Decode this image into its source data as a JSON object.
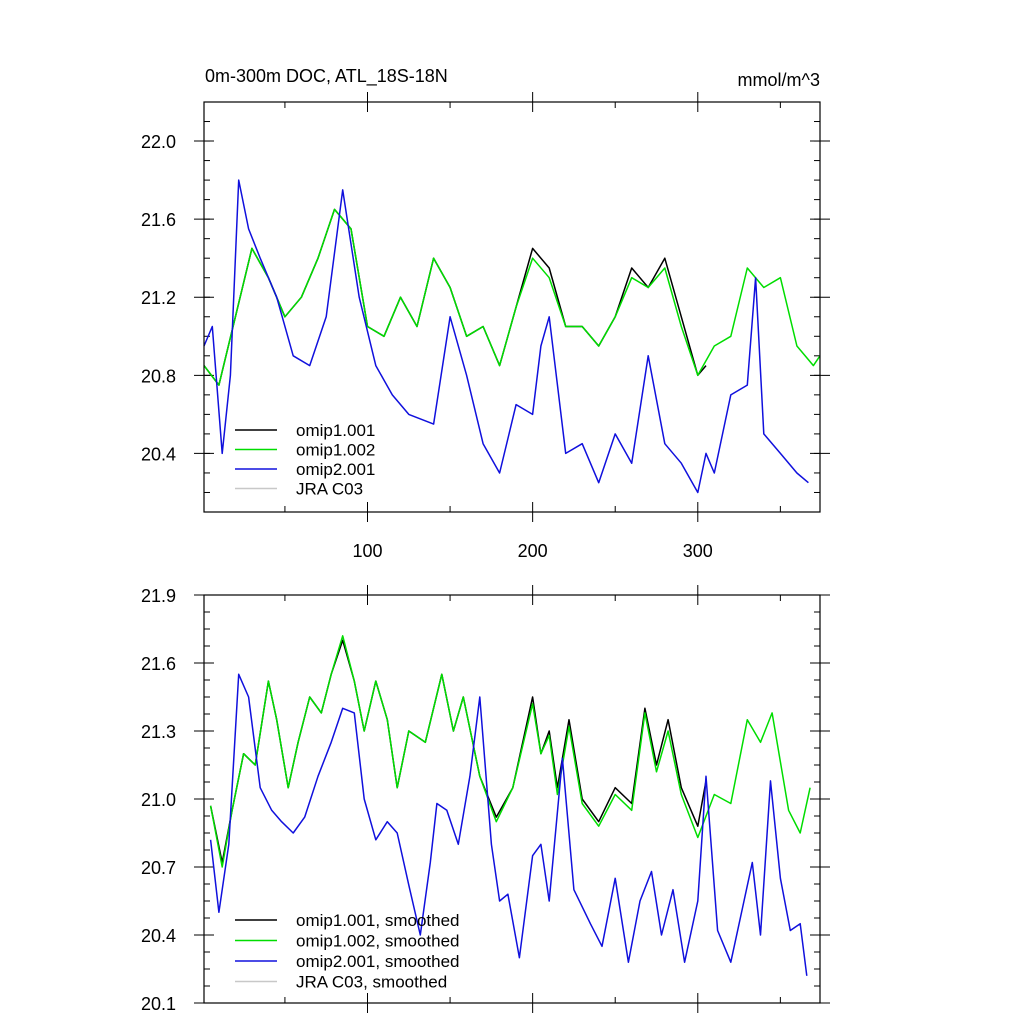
{
  "chart_data": [
    {
      "type": "line",
      "title": "0m-300m DOC, ATL_18S-18N",
      "units": "mmol/m^3",
      "xlabel": "",
      "ylabel": "",
      "xlim": [
        1,
        374
      ],
      "ylim": [
        20.1,
        22.2
      ],
      "xticks": [
        100,
        200,
        300
      ],
      "xtick_labels": [
        "100",
        "200",
        "300"
      ],
      "yticks": [
        20.4,
        20.8,
        21.2,
        21.6,
        22.0
      ],
      "ytick_labels": [
        "20.4",
        "20.8",
        "21.2",
        "21.6",
        "22.0"
      ],
      "legend_position": "bottom-left",
      "series": [
        {
          "name": "omip1.001",
          "color": "#000000",
          "x": [
            1,
            10,
            20,
            30,
            40,
            50,
            60,
            70,
            80,
            90,
            100,
            110,
            120,
            130,
            140,
            150,
            160,
            170,
            180,
            190,
            200,
            210,
            220,
            230,
            240,
            250,
            260,
            270,
            280,
            290,
            300,
            305
          ],
          "values": [
            20.85,
            20.75,
            21.1,
            21.45,
            21.3,
            21.1,
            21.2,
            21.4,
            21.65,
            21.55,
            21.05,
            21.0,
            21.2,
            21.05,
            21.4,
            21.25,
            21.0,
            21.05,
            20.85,
            21.15,
            21.45,
            21.35,
            21.05,
            21.05,
            20.95,
            21.1,
            21.35,
            21.25,
            21.4,
            21.1,
            20.8,
            20.85
          ]
        },
        {
          "name": "omip1.002",
          "color": "#00dd00",
          "x": [
            1,
            10,
            20,
            30,
            40,
            50,
            60,
            70,
            80,
            90,
            100,
            110,
            120,
            130,
            140,
            150,
            160,
            170,
            180,
            190,
            200,
            210,
            220,
            230,
            240,
            250,
            260,
            270,
            280,
            290,
            300,
            310,
            320,
            330,
            340,
            350,
            360,
            370,
            374
          ],
          "values": [
            20.85,
            20.75,
            21.1,
            21.45,
            21.3,
            21.1,
            21.2,
            21.4,
            21.65,
            21.55,
            21.05,
            21.0,
            21.2,
            21.05,
            21.4,
            21.25,
            21.0,
            21.05,
            20.85,
            21.15,
            21.4,
            21.3,
            21.05,
            21.05,
            20.95,
            21.1,
            21.3,
            21.25,
            21.35,
            21.05,
            20.8,
            20.95,
            21.0,
            21.35,
            21.25,
            21.3,
            20.95,
            20.85,
            20.9
          ]
        },
        {
          "name": "omip2.001",
          "color": "#1010dd",
          "x": [
            1,
            6,
            12,
            17,
            22,
            28,
            35,
            45,
            55,
            65,
            75,
            85,
            95,
            105,
            115,
            125,
            140,
            150,
            160,
            170,
            180,
            190,
            200,
            205,
            210,
            220,
            230,
            240,
            250,
            260,
            270,
            280,
            290,
            300,
            305,
            310,
            320,
            330,
            335,
            340,
            350,
            360,
            367
          ],
          "values": [
            20.95,
            21.05,
            20.4,
            20.8,
            21.8,
            21.55,
            21.4,
            21.2,
            20.9,
            20.85,
            21.1,
            21.75,
            21.2,
            20.85,
            20.7,
            20.6,
            20.55,
            21.1,
            20.8,
            20.45,
            20.3,
            20.65,
            20.6,
            20.95,
            21.1,
            20.4,
            20.45,
            20.25,
            20.5,
            20.35,
            20.9,
            20.45,
            20.35,
            20.2,
            20.4,
            20.3,
            20.7,
            20.75,
            21.3,
            20.5,
            20.4,
            20.3,
            20.25
          ]
        },
        {
          "name": "JRA C03",
          "color": "#c8c8c8",
          "x": [],
          "values": []
        }
      ]
    },
    {
      "type": "line",
      "title": "",
      "xlabel": "",
      "ylabel": "",
      "xlim": [
        1,
        374
      ],
      "ylim": [
        20.1,
        21.9
      ],
      "xticks": [
        100,
        200,
        300
      ],
      "yticks": [
        20.1,
        20.4,
        20.7,
        21.0,
        21.3,
        21.6,
        21.9
      ],
      "ytick_labels": [
        "20.1",
        "20.4",
        "20.7",
        "21.0",
        "21.3",
        "21.6",
        "21.9"
      ],
      "legend_position": "bottom-left",
      "series": [
        {
          "name": "omip1.001, smoothed",
          "color": "#000000",
          "x": [
            5,
            12,
            18,
            25,
            32,
            40,
            45,
            52,
            58,
            65,
            72,
            78,
            85,
            92,
            98,
            105,
            112,
            118,
            125,
            135,
            145,
            152,
            158,
            168,
            178,
            188,
            200,
            205,
            210,
            215,
            222,
            230,
            240,
            250,
            260,
            268,
            275,
            282,
            290,
            300,
            305
          ],
          "values": [
            20.97,
            20.72,
            20.95,
            21.2,
            21.15,
            21.52,
            21.35,
            21.05,
            21.25,
            21.45,
            21.38,
            21.55,
            21.7,
            21.52,
            21.3,
            21.52,
            21.35,
            21.05,
            21.3,
            21.25,
            21.55,
            21.3,
            21.45,
            21.1,
            20.92,
            21.05,
            21.45,
            21.2,
            21.3,
            21.05,
            21.35,
            21.0,
            20.9,
            21.05,
            20.98,
            21.4,
            21.15,
            21.35,
            21.05,
            20.88,
            21.08
          ]
        },
        {
          "name": "omip1.002, smoothed",
          "color": "#00dd00",
          "x": [
            5,
            12,
            18,
            25,
            32,
            40,
            45,
            52,
            58,
            65,
            72,
            78,
            85,
            92,
            98,
            105,
            112,
            118,
            125,
            135,
            145,
            152,
            158,
            168,
            178,
            188,
            200,
            205,
            210,
            215,
            222,
            230,
            240,
            250,
            260,
            268,
            275,
            282,
            290,
            300,
            310,
            320,
            330,
            338,
            345,
            355,
            362,
            368
          ],
          "values": [
            20.97,
            20.7,
            20.95,
            21.2,
            21.15,
            21.52,
            21.35,
            21.05,
            21.25,
            21.45,
            21.38,
            21.55,
            21.72,
            21.52,
            21.3,
            21.52,
            21.35,
            21.05,
            21.3,
            21.25,
            21.55,
            21.3,
            21.45,
            21.1,
            20.9,
            21.05,
            21.42,
            21.2,
            21.28,
            21.02,
            21.32,
            20.98,
            20.88,
            21.02,
            20.95,
            21.38,
            21.12,
            21.3,
            21.02,
            20.83,
            21.02,
            20.98,
            21.35,
            21.25,
            21.38,
            20.95,
            20.85,
            21.05
          ]
        },
        {
          "name": "omip2.001, smoothed",
          "color": "#1010dd",
          "x": [
            5,
            10,
            16,
            22,
            28,
            35,
            42,
            48,
            55,
            62,
            70,
            78,
            85,
            92,
            98,
            105,
            112,
            118,
            125,
            132,
            138,
            142,
            148,
            155,
            162,
            168,
            175,
            180,
            185,
            192,
            200,
            205,
            210,
            218,
            225,
            235,
            242,
            250,
            258,
            265,
            272,
            278,
            285,
            292,
            300,
            305,
            312,
            320,
            328,
            333,
            338,
            344,
            350,
            356,
            362,
            366
          ],
          "values": [
            20.82,
            20.5,
            20.8,
            21.55,
            21.45,
            21.05,
            20.95,
            20.9,
            20.85,
            20.92,
            21.1,
            21.25,
            21.4,
            21.38,
            21.0,
            20.82,
            20.9,
            20.85,
            20.62,
            20.4,
            20.72,
            20.98,
            20.95,
            20.8,
            21.1,
            21.45,
            20.8,
            20.55,
            20.58,
            20.3,
            20.75,
            20.8,
            20.55,
            21.18,
            20.6,
            20.45,
            20.35,
            20.65,
            20.28,
            20.55,
            20.68,
            20.4,
            20.6,
            20.28,
            20.55,
            21.1,
            20.42,
            20.28,
            20.55,
            20.72,
            20.4,
            21.08,
            20.65,
            20.42,
            20.45,
            20.22
          ]
        },
        {
          "name": "JRA C03, smoothed",
          "color": "#c8c8c8",
          "x": [],
          "values": []
        }
      ]
    }
  ]
}
